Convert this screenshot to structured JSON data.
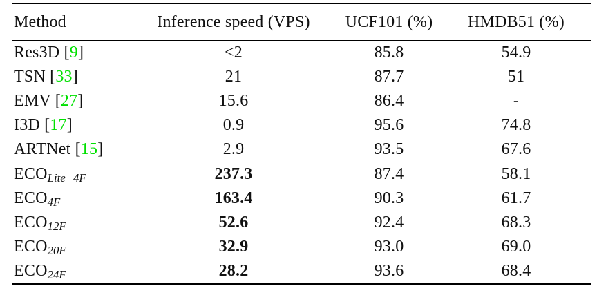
{
  "table": {
    "headers": [
      "Method",
      "Inference speed (VPS)",
      "UCF101 (%)",
      "HMDB51 (%)"
    ],
    "rows": [
      {
        "method": "Res3D",
        "sub": null,
        "open": " [",
        "cite": "9",
        "close": "]",
        "speed": "<2",
        "speed_bold": false,
        "ucf101": "85.8",
        "hmdb51": "54.9"
      },
      {
        "method": "TSN",
        "sub": null,
        "open": " [",
        "cite": "33",
        "close": "]",
        "speed": "21",
        "speed_bold": false,
        "ucf101": "87.7",
        "hmdb51": "51"
      },
      {
        "method": "EMV",
        "sub": null,
        "open": " [",
        "cite": "27",
        "close": "]",
        "speed": "15.6",
        "speed_bold": false,
        "ucf101": "86.4",
        "hmdb51": "-"
      },
      {
        "method": "I3D",
        "sub": null,
        "open": " [",
        "cite": "17",
        "close": "]",
        "speed": "0.9",
        "speed_bold": false,
        "ucf101": "95.6",
        "hmdb51": "74.8"
      },
      {
        "method": "ARTNet",
        "sub": null,
        "open": " [",
        "cite": "15",
        "close": "]",
        "speed": "2.9",
        "speed_bold": false,
        "ucf101": "93.5",
        "hmdb51": "67.6"
      },
      {
        "method": "ECO",
        "sub": "Lite−4F",
        "open": null,
        "cite": null,
        "close": null,
        "speed": "237.3",
        "speed_bold": true,
        "ucf101": "87.4",
        "hmdb51": "58.1"
      },
      {
        "method": "ECO",
        "sub": "4F",
        "open": null,
        "cite": null,
        "close": null,
        "speed": "163.4",
        "speed_bold": true,
        "ucf101": "90.3",
        "hmdb51": "61.7"
      },
      {
        "method": "ECO",
        "sub": "12F",
        "open": null,
        "cite": null,
        "close": null,
        "speed": "52.6",
        "speed_bold": true,
        "ucf101": "92.4",
        "hmdb51": "68.3"
      },
      {
        "method": "ECO",
        "sub": "20F",
        "open": null,
        "cite": null,
        "close": null,
        "speed": "32.9",
        "speed_bold": true,
        "ucf101": "93.0",
        "hmdb51": "69.0"
      },
      {
        "method": "ECO",
        "sub": "24F",
        "open": null,
        "cite": null,
        "close": null,
        "speed": "28.2",
        "speed_bold": true,
        "ucf101": "93.6",
        "hmdb51": "68.4"
      }
    ]
  },
  "colors": {
    "citation_green": "#00e000",
    "text": "#111111",
    "rule": "#000000",
    "background": "#ffffff"
  }
}
